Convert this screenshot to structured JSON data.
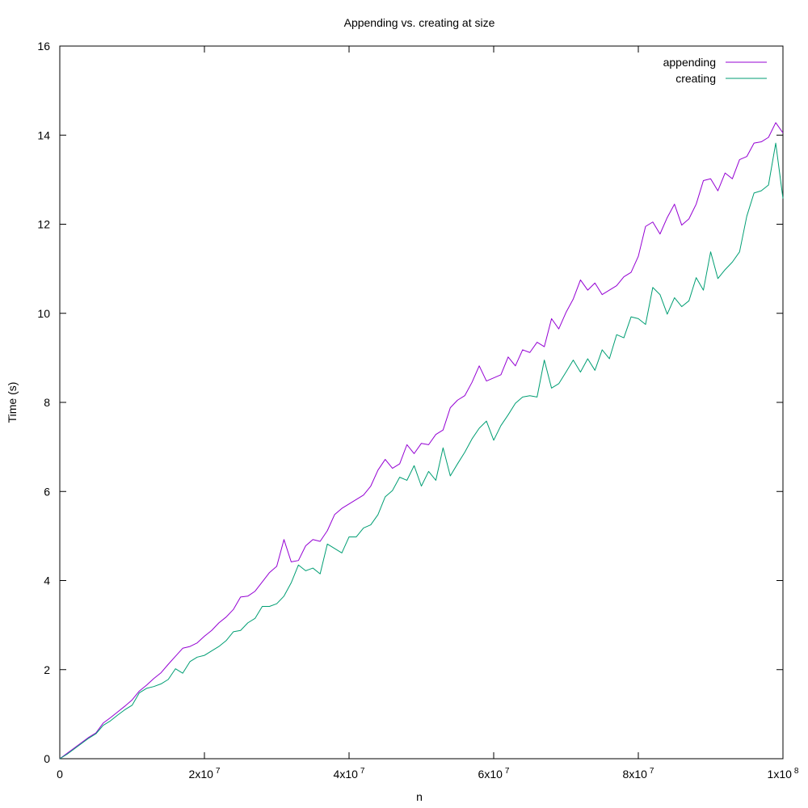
{
  "chart_data": {
    "type": "line",
    "title": "Appending vs. creating at size",
    "xlabel": "n",
    "ylabel": "Time (s)",
    "xlim": [
      0,
      100000000
    ],
    "ylim": [
      0,
      16
    ],
    "grid": false,
    "legend_position": "top-right",
    "x_ticks": [
      {
        "value": 0,
        "base": "0",
        "exp": ""
      },
      {
        "value": 20000000,
        "base": "2x10",
        "exp": "7"
      },
      {
        "value": 40000000,
        "base": "4x10",
        "exp": "7"
      },
      {
        "value": 60000000,
        "base": "6x10",
        "exp": "7"
      },
      {
        "value": 80000000,
        "base": "8x10",
        "exp": "7"
      },
      {
        "value": 100000000,
        "base": "1x10",
        "exp": "8"
      }
    ],
    "y_ticks": [
      {
        "value": 0,
        "label": "0"
      },
      {
        "value": 2,
        "label": "2"
      },
      {
        "value": 4,
        "label": "4"
      },
      {
        "value": 6,
        "label": "6"
      },
      {
        "value": 8,
        "label": "8"
      },
      {
        "value": 10,
        "label": "10"
      },
      {
        "value": 12,
        "label": "12"
      },
      {
        "value": 14,
        "label": "14"
      },
      {
        "value": 16,
        "label": "16"
      }
    ],
    "series": [
      {
        "name": "appending",
        "color": "#9400d3",
        "points": [
          [
            0,
            0
          ],
          [
            1000000,
            0.12
          ],
          [
            2000000,
            0.24
          ],
          [
            3000000,
            0.36
          ],
          [
            4000000,
            0.48
          ],
          [
            5000000,
            0.58
          ],
          [
            6000000,
            0.8
          ],
          [
            7000000,
            0.92
          ],
          [
            8000000,
            1.05
          ],
          [
            9000000,
            1.18
          ],
          [
            10000000,
            1.32
          ],
          [
            11000000,
            1.52
          ],
          [
            12000000,
            1.65
          ],
          [
            13000000,
            1.8
          ],
          [
            14000000,
            1.93
          ],
          [
            15000000,
            2.12
          ],
          [
            16000000,
            2.3
          ],
          [
            17000000,
            2.48
          ],
          [
            18000000,
            2.52
          ],
          [
            19000000,
            2.6
          ],
          [
            20000000,
            2.75
          ],
          [
            21000000,
            2.88
          ],
          [
            22000000,
            3.05
          ],
          [
            23000000,
            3.18
          ],
          [
            24000000,
            3.35
          ],
          [
            25000000,
            3.63
          ],
          [
            26000000,
            3.65
          ],
          [
            27000000,
            3.76
          ],
          [
            28000000,
            3.97
          ],
          [
            29000000,
            4.18
          ],
          [
            30000000,
            4.32
          ],
          [
            31000000,
            4.92
          ],
          [
            32000000,
            4.42
          ],
          [
            33000000,
            4.45
          ],
          [
            34000000,
            4.78
          ],
          [
            35000000,
            4.92
          ],
          [
            36000000,
            4.88
          ],
          [
            37000000,
            5.12
          ],
          [
            38000000,
            5.48
          ],
          [
            39000000,
            5.62
          ],
          [
            40000000,
            5.72
          ],
          [
            41000000,
            5.82
          ],
          [
            42000000,
            5.92
          ],
          [
            43000000,
            6.12
          ],
          [
            44000000,
            6.48
          ],
          [
            45000000,
            6.72
          ],
          [
            46000000,
            6.52
          ],
          [
            47000000,
            6.62
          ],
          [
            48000000,
            7.05
          ],
          [
            49000000,
            6.85
          ],
          [
            50000000,
            7.08
          ],
          [
            51000000,
            7.05
          ],
          [
            52000000,
            7.28
          ],
          [
            53000000,
            7.38
          ],
          [
            54000000,
            7.88
          ],
          [
            55000000,
            8.05
          ],
          [
            56000000,
            8.15
          ],
          [
            57000000,
            8.45
          ],
          [
            58000000,
            8.82
          ],
          [
            59000000,
            8.48
          ],
          [
            60000000,
            8.55
          ],
          [
            61000000,
            8.62
          ],
          [
            62000000,
            9.02
          ],
          [
            63000000,
            8.82
          ],
          [
            64000000,
            9.18
          ],
          [
            65000000,
            9.12
          ],
          [
            66000000,
            9.35
          ],
          [
            67000000,
            9.25
          ],
          [
            68000000,
            9.88
          ],
          [
            69000000,
            9.65
          ],
          [
            70000000,
            10.02
          ],
          [
            71000000,
            10.32
          ],
          [
            72000000,
            10.75
          ],
          [
            73000000,
            10.52
          ],
          [
            74000000,
            10.68
          ],
          [
            75000000,
            10.42
          ],
          [
            76000000,
            10.52
          ],
          [
            77000000,
            10.62
          ],
          [
            78000000,
            10.82
          ],
          [
            79000000,
            10.92
          ],
          [
            80000000,
            11.28
          ],
          [
            81000000,
            11.95
          ],
          [
            82000000,
            12.05
          ],
          [
            83000000,
            11.78
          ],
          [
            84000000,
            12.15
          ],
          [
            85000000,
            12.45
          ],
          [
            86000000,
            11.98
          ],
          [
            87000000,
            12.12
          ],
          [
            88000000,
            12.45
          ],
          [
            89000000,
            12.98
          ],
          [
            90000000,
            13.02
          ],
          [
            91000000,
            12.75
          ],
          [
            92000000,
            13.15
          ],
          [
            93000000,
            13.02
          ],
          [
            94000000,
            13.45
          ],
          [
            95000000,
            13.52
          ],
          [
            96000000,
            13.82
          ],
          [
            97000000,
            13.85
          ],
          [
            98000000,
            13.95
          ],
          [
            99000000,
            14.28
          ],
          [
            100000000,
            14.05
          ]
        ]
      },
      {
        "name": "creating",
        "color": "#009e73",
        "points": [
          [
            0,
            0
          ],
          [
            1000000,
            0.1
          ],
          [
            2000000,
            0.22
          ],
          [
            3000000,
            0.34
          ],
          [
            4000000,
            0.46
          ],
          [
            5000000,
            0.56
          ],
          [
            6000000,
            0.75
          ],
          [
            7000000,
            0.85
          ],
          [
            8000000,
            0.98
          ],
          [
            9000000,
            1.1
          ],
          [
            10000000,
            1.2
          ],
          [
            11000000,
            1.48
          ],
          [
            12000000,
            1.58
          ],
          [
            13000000,
            1.62
          ],
          [
            14000000,
            1.68
          ],
          [
            15000000,
            1.78
          ],
          [
            16000000,
            2.02
          ],
          [
            17000000,
            1.92
          ],
          [
            18000000,
            2.18
          ],
          [
            19000000,
            2.28
          ],
          [
            20000000,
            2.32
          ],
          [
            21000000,
            2.42
          ],
          [
            22000000,
            2.52
          ],
          [
            23000000,
            2.65
          ],
          [
            24000000,
            2.85
          ],
          [
            25000000,
            2.88
          ],
          [
            26000000,
            3.05
          ],
          [
            27000000,
            3.15
          ],
          [
            28000000,
            3.42
          ],
          [
            29000000,
            3.42
          ],
          [
            30000000,
            3.48
          ],
          [
            31000000,
            3.65
          ],
          [
            32000000,
            3.95
          ],
          [
            33000000,
            4.35
          ],
          [
            34000000,
            4.22
          ],
          [
            35000000,
            4.28
          ],
          [
            36000000,
            4.15
          ],
          [
            37000000,
            4.82
          ],
          [
            38000000,
            4.72
          ],
          [
            39000000,
            4.62
          ],
          [
            40000000,
            4.98
          ],
          [
            41000000,
            4.98
          ],
          [
            42000000,
            5.18
          ],
          [
            43000000,
            5.25
          ],
          [
            44000000,
            5.48
          ],
          [
            45000000,
            5.88
          ],
          [
            46000000,
            6.02
          ],
          [
            47000000,
            6.32
          ],
          [
            48000000,
            6.25
          ],
          [
            49000000,
            6.58
          ],
          [
            50000000,
            6.12
          ],
          [
            51000000,
            6.45
          ],
          [
            52000000,
            6.25
          ],
          [
            53000000,
            6.98
          ],
          [
            54000000,
            6.35
          ],
          [
            55000000,
            6.62
          ],
          [
            56000000,
            6.88
          ],
          [
            57000000,
            7.18
          ],
          [
            58000000,
            7.42
          ],
          [
            59000000,
            7.58
          ],
          [
            60000000,
            7.15
          ],
          [
            61000000,
            7.48
          ],
          [
            62000000,
            7.72
          ],
          [
            63000000,
            7.98
          ],
          [
            64000000,
            8.12
          ],
          [
            65000000,
            8.15
          ],
          [
            66000000,
            8.12
          ],
          [
            67000000,
            8.95
          ],
          [
            68000000,
            8.32
          ],
          [
            69000000,
            8.42
          ],
          [
            70000000,
            8.68
          ],
          [
            71000000,
            8.95
          ],
          [
            72000000,
            8.68
          ],
          [
            73000000,
            8.98
          ],
          [
            74000000,
            8.72
          ],
          [
            75000000,
            9.18
          ],
          [
            76000000,
            8.98
          ],
          [
            77000000,
            9.52
          ],
          [
            78000000,
            9.45
          ],
          [
            79000000,
            9.92
          ],
          [
            80000000,
            9.88
          ],
          [
            81000000,
            9.75
          ],
          [
            82000000,
            10.58
          ],
          [
            83000000,
            10.42
          ],
          [
            84000000,
            9.98
          ],
          [
            85000000,
            10.35
          ],
          [
            86000000,
            10.15
          ],
          [
            87000000,
            10.28
          ],
          [
            88000000,
            10.8
          ],
          [
            89000000,
            10.52
          ],
          [
            90000000,
            11.38
          ],
          [
            91000000,
            10.78
          ],
          [
            92000000,
            10.98
          ],
          [
            93000000,
            11.15
          ],
          [
            94000000,
            11.38
          ],
          [
            95000000,
            12.18
          ],
          [
            96000000,
            12.7
          ],
          [
            97000000,
            12.75
          ],
          [
            98000000,
            12.88
          ],
          [
            99000000,
            13.82
          ],
          [
            100000000,
            12.58
          ]
        ]
      }
    ]
  }
}
